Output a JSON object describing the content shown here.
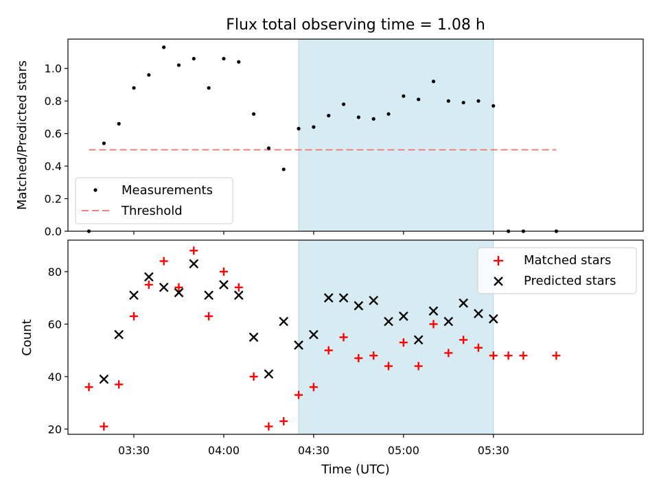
{
  "chart_data": [
    {
      "type": "scatter",
      "title": "Flux total observing time = 1.08 h",
      "ylabel": "Matched/Predicted stars",
      "xlim": [
        "03:08",
        "06:20"
      ],
      "ylim": [
        0,
        1.18
      ],
      "yticks": [
        "0.0",
        "0.2",
        "0.4",
        "0.6",
        "0.8",
        "1.0"
      ],
      "grid": false,
      "legend_position": "lower-left",
      "highlight": {
        "from": "04:25",
        "to": "05:30",
        "color": "#add8e6"
      },
      "series": [
        {
          "name": "Measurements",
          "marker": "dot",
          "color": "#000000",
          "points": [
            [
              "03:15",
              0.0
            ],
            [
              "03:20",
              0.54
            ],
            [
              "03:25",
              0.66
            ],
            [
              "03:30",
              0.88
            ],
            [
              "03:35",
              0.96
            ],
            [
              "03:40",
              1.13
            ],
            [
              "03:45",
              1.02
            ],
            [
              "03:50",
              1.06
            ],
            [
              "03:55",
              0.88
            ],
            [
              "04:00",
              1.06
            ],
            [
              "04:05",
              1.04
            ],
            [
              "04:10",
              0.72
            ],
            [
              "04:15",
              0.51
            ],
            [
              "04:20",
              0.38
            ],
            [
              "04:25",
              0.63
            ],
            [
              "04:30",
              0.64
            ],
            [
              "04:35",
              0.71
            ],
            [
              "04:40",
              0.78
            ],
            [
              "04:45",
              0.7
            ],
            [
              "04:50",
              0.69
            ],
            [
              "04:55",
              0.72
            ],
            [
              "05:00",
              0.83
            ],
            [
              "05:05",
              0.81
            ],
            [
              "05:10",
              0.92
            ],
            [
              "05:15",
              0.8
            ],
            [
              "05:20",
              0.79
            ],
            [
              "05:25",
              0.8
            ],
            [
              "05:30",
              0.77
            ],
            [
              "05:35",
              0.0
            ],
            [
              "05:40",
              0.0
            ],
            [
              "05:51",
              0.0
            ]
          ]
        },
        {
          "name": "Threshold",
          "line_style": "dashed",
          "color": "#f08080",
          "points": [
            [
              "03:15",
              0.5
            ],
            [
              "05:51",
              0.5
            ]
          ]
        }
      ]
    },
    {
      "type": "scatter",
      "xlabel": "Time (UTC)",
      "ylabel": "Count",
      "xlim": [
        "03:08",
        "06:20"
      ],
      "ylim": [
        18,
        92
      ],
      "xticks": [
        "03:30",
        "04:00",
        "04:30",
        "05:00",
        "05:30"
      ],
      "yticks": [
        "20",
        "40",
        "60",
        "80"
      ],
      "grid": false,
      "legend_position": "upper-right",
      "highlight": {
        "from": "04:25",
        "to": "05:30",
        "color": "#add8e6"
      },
      "series": [
        {
          "name": "Matched stars",
          "marker": "plus",
          "color": "#ff0000",
          "points": [
            [
              "03:15",
              36
            ],
            [
              "03:20",
              21
            ],
            [
              "03:25",
              37
            ],
            [
              "03:30",
              63
            ],
            [
              "03:35",
              75
            ],
            [
              "03:40",
              84
            ],
            [
              "03:45",
              74
            ],
            [
              "03:50",
              88
            ],
            [
              "03:55",
              63
            ],
            [
              "04:00",
              80
            ],
            [
              "04:05",
              74
            ],
            [
              "04:10",
              40
            ],
            [
              "04:15",
              21
            ],
            [
              "04:20",
              23
            ],
            [
              "04:25",
              33
            ],
            [
              "04:30",
              36
            ],
            [
              "04:35",
              50
            ],
            [
              "04:40",
              55
            ],
            [
              "04:45",
              47
            ],
            [
              "04:50",
              48
            ],
            [
              "04:55",
              44
            ],
            [
              "05:00",
              53
            ],
            [
              "05:05",
              44
            ],
            [
              "05:10",
              60
            ],
            [
              "05:15",
              49
            ],
            [
              "05:20",
              54
            ],
            [
              "05:25",
              51
            ],
            [
              "05:30",
              48
            ],
            [
              "05:35",
              48
            ],
            [
              "05:40",
              48
            ],
            [
              "05:51",
              48
            ]
          ]
        },
        {
          "name": "Predicted stars",
          "marker": "x",
          "color": "#000000",
          "points": [
            [
              "03:20",
              39
            ],
            [
              "03:25",
              56
            ],
            [
              "03:30",
              71
            ],
            [
              "03:35",
              78
            ],
            [
              "03:40",
              74
            ],
            [
              "03:45",
              72
            ],
            [
              "03:50",
              83
            ],
            [
              "03:55",
              71
            ],
            [
              "04:00",
              75
            ],
            [
              "04:05",
              71
            ],
            [
              "04:10",
              55
            ],
            [
              "04:15",
              41
            ],
            [
              "04:20",
              61
            ],
            [
              "04:25",
              52
            ],
            [
              "04:30",
              56
            ],
            [
              "04:35",
              70
            ],
            [
              "04:40",
              70
            ],
            [
              "04:45",
              67
            ],
            [
              "04:50",
              69
            ],
            [
              "04:55",
              61
            ],
            [
              "05:00",
              63
            ],
            [
              "05:05",
              54
            ],
            [
              "05:10",
              65
            ],
            [
              "05:15",
              61
            ],
            [
              "05:20",
              68
            ],
            [
              "05:25",
              64
            ],
            [
              "05:30",
              62
            ]
          ]
        }
      ]
    }
  ]
}
